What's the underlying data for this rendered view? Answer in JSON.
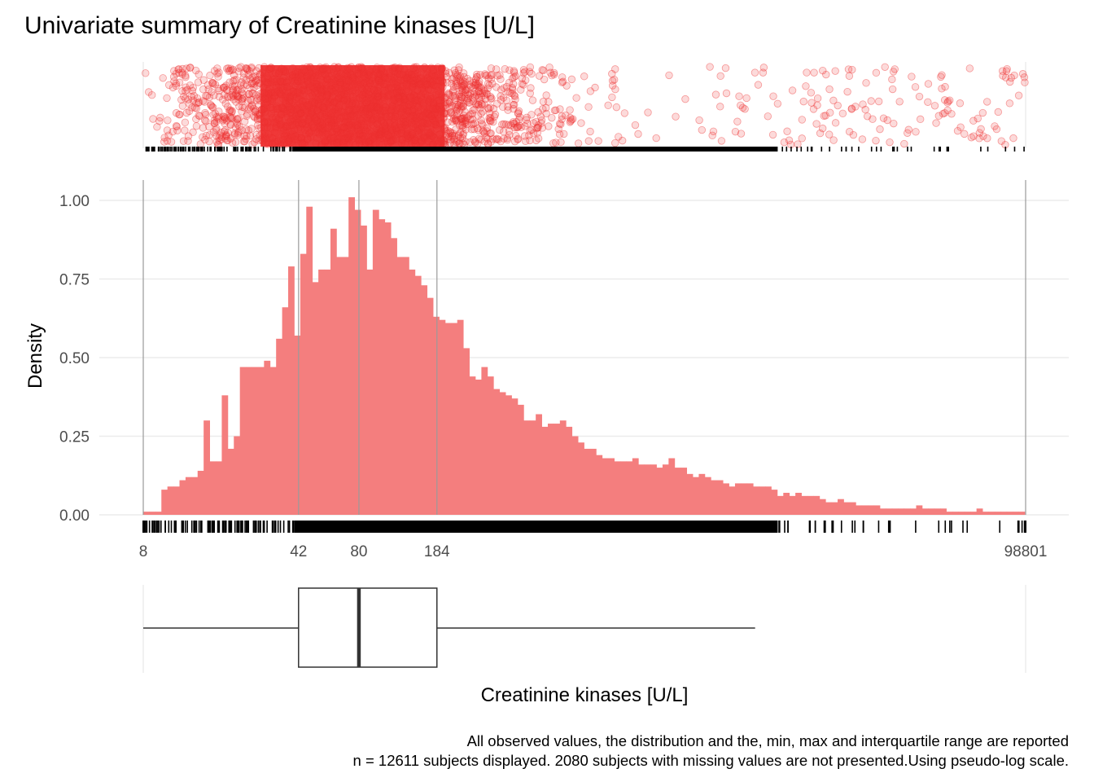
{
  "chart_data": {
    "type": "histogram",
    "title": "Univariate summary of Creatinine kinases [U/L]",
    "xlabel": "Creatinine kinases [U/L]",
    "ylabel": "Density",
    "x_scale": "pseudo-log",
    "x_range": [
      8,
      98801
    ],
    "y_range": [
      0,
      1.0
    ],
    "y_ticks": [
      "0.00",
      "0.25",
      "0.50",
      "0.75",
      "1.00"
    ],
    "x_tick_labels": [
      {
        "label": "8",
        "value": 8
      },
      {
        "label": "42",
        "value": 42
      },
      {
        "label": "80",
        "value": 80
      },
      {
        "label": "184",
        "value": 184
      },
      {
        "label": "98801",
        "value": 98801
      }
    ],
    "reference_lines": [
      8,
      42,
      80,
      184,
      98801
    ],
    "fill_color": "#f47e7e",
    "point_color": "#ee3131",
    "grid": true,
    "density_values": [
      0.01,
      0.01,
      0.01,
      0.08,
      0.09,
      0.09,
      0.11,
      0.12,
      0.12,
      0.14,
      0.3,
      0.17,
      0.17,
      0.38,
      0.21,
      0.25,
      0.47,
      0.47,
      0.47,
      0.47,
      0.49,
      0.47,
      0.56,
      0.66,
      0.79,
      0.57,
      0.83,
      0.98,
      0.74,
      0.78,
      0.78,
      0.91,
      0.82,
      0.82,
      1.01,
      0.97,
      0.92,
      0.78,
      0.97,
      0.94,
      0.93,
      0.88,
      0.82,
      0.82,
      0.78,
      0.76,
      0.73,
      0.69,
      0.63,
      0.62,
      0.61,
      0.61,
      0.62,
      0.53,
      0.44,
      0.43,
      0.47,
      0.44,
      0.4,
      0.39,
      0.38,
      0.37,
      0.35,
      0.3,
      0.3,
      0.32,
      0.28,
      0.29,
      0.29,
      0.3,
      0.28,
      0.25,
      0.23,
      0.21,
      0.21,
      0.19,
      0.18,
      0.18,
      0.17,
      0.17,
      0.17,
      0.18,
      0.16,
      0.16,
      0.16,
      0.15,
      0.16,
      0.18,
      0.15,
      0.15,
      0.13,
      0.12,
      0.13,
      0.12,
      0.11,
      0.11,
      0.1,
      0.09,
      0.1,
      0.1,
      0.1,
      0.09,
      0.09,
      0.09,
      0.08,
      0.06,
      0.07,
      0.06,
      0.07,
      0.06,
      0.06,
      0.06,
      0.05,
      0.04,
      0.04,
      0.05,
      0.04,
      0.04,
      0.03,
      0.03,
      0.03,
      0.03,
      0.02,
      0.02,
      0.02,
      0.02,
      0.02,
      0.02,
      0.03,
      0.02,
      0.02,
      0.02,
      0.02,
      0.01,
      0.01,
      0.01,
      0.01,
      0.01,
      0.02,
      0.01,
      0.01,
      0.01,
      0.01,
      0.01,
      0.01,
      0.01
    ],
    "boxplot": {
      "min": 8,
      "q1": 42,
      "median": 80,
      "q3": 184,
      "whisker_high": 5500,
      "max": 98801
    },
    "caption_lines": [
      "All observed values, the distribution and the, min, max and interquartile range are reported",
      "n = 12611 subjects displayed. 2080 subjects with missing values are not presented.Using pseudo-log scale."
    ]
  }
}
